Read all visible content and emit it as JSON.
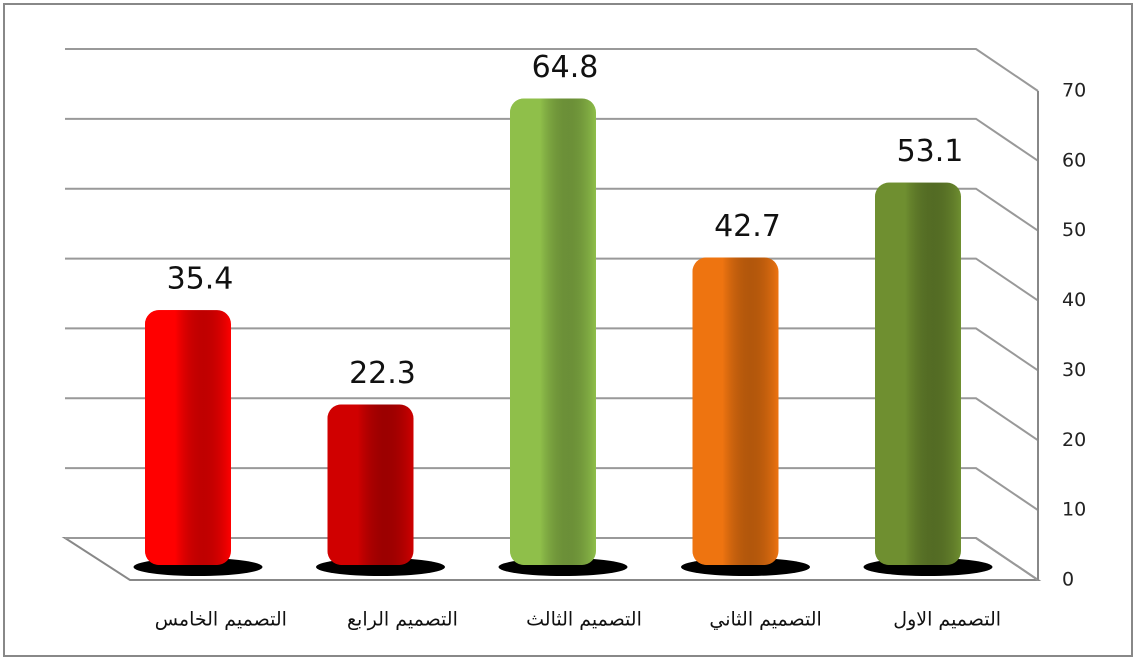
{
  "chart_data": {
    "type": "bar",
    "categories": [
      "التصميم الخامس",
      "التصميم الرابع",
      "التصميم الثالث",
      "التصميم الثاني",
      "التصميم الاول"
    ],
    "values": [
      35.4,
      22.3,
      64.8,
      42.7,
      53.1
    ],
    "colors": [
      "#ff0000",
      "#d00000",
      "#8fbf4a",
      "#ee7410",
      "#6f8f30"
    ],
    "ylim": [
      0,
      70
    ],
    "yticks": [
      0,
      10,
      20,
      30,
      40,
      50,
      60,
      70
    ],
    "grid": true
  }
}
